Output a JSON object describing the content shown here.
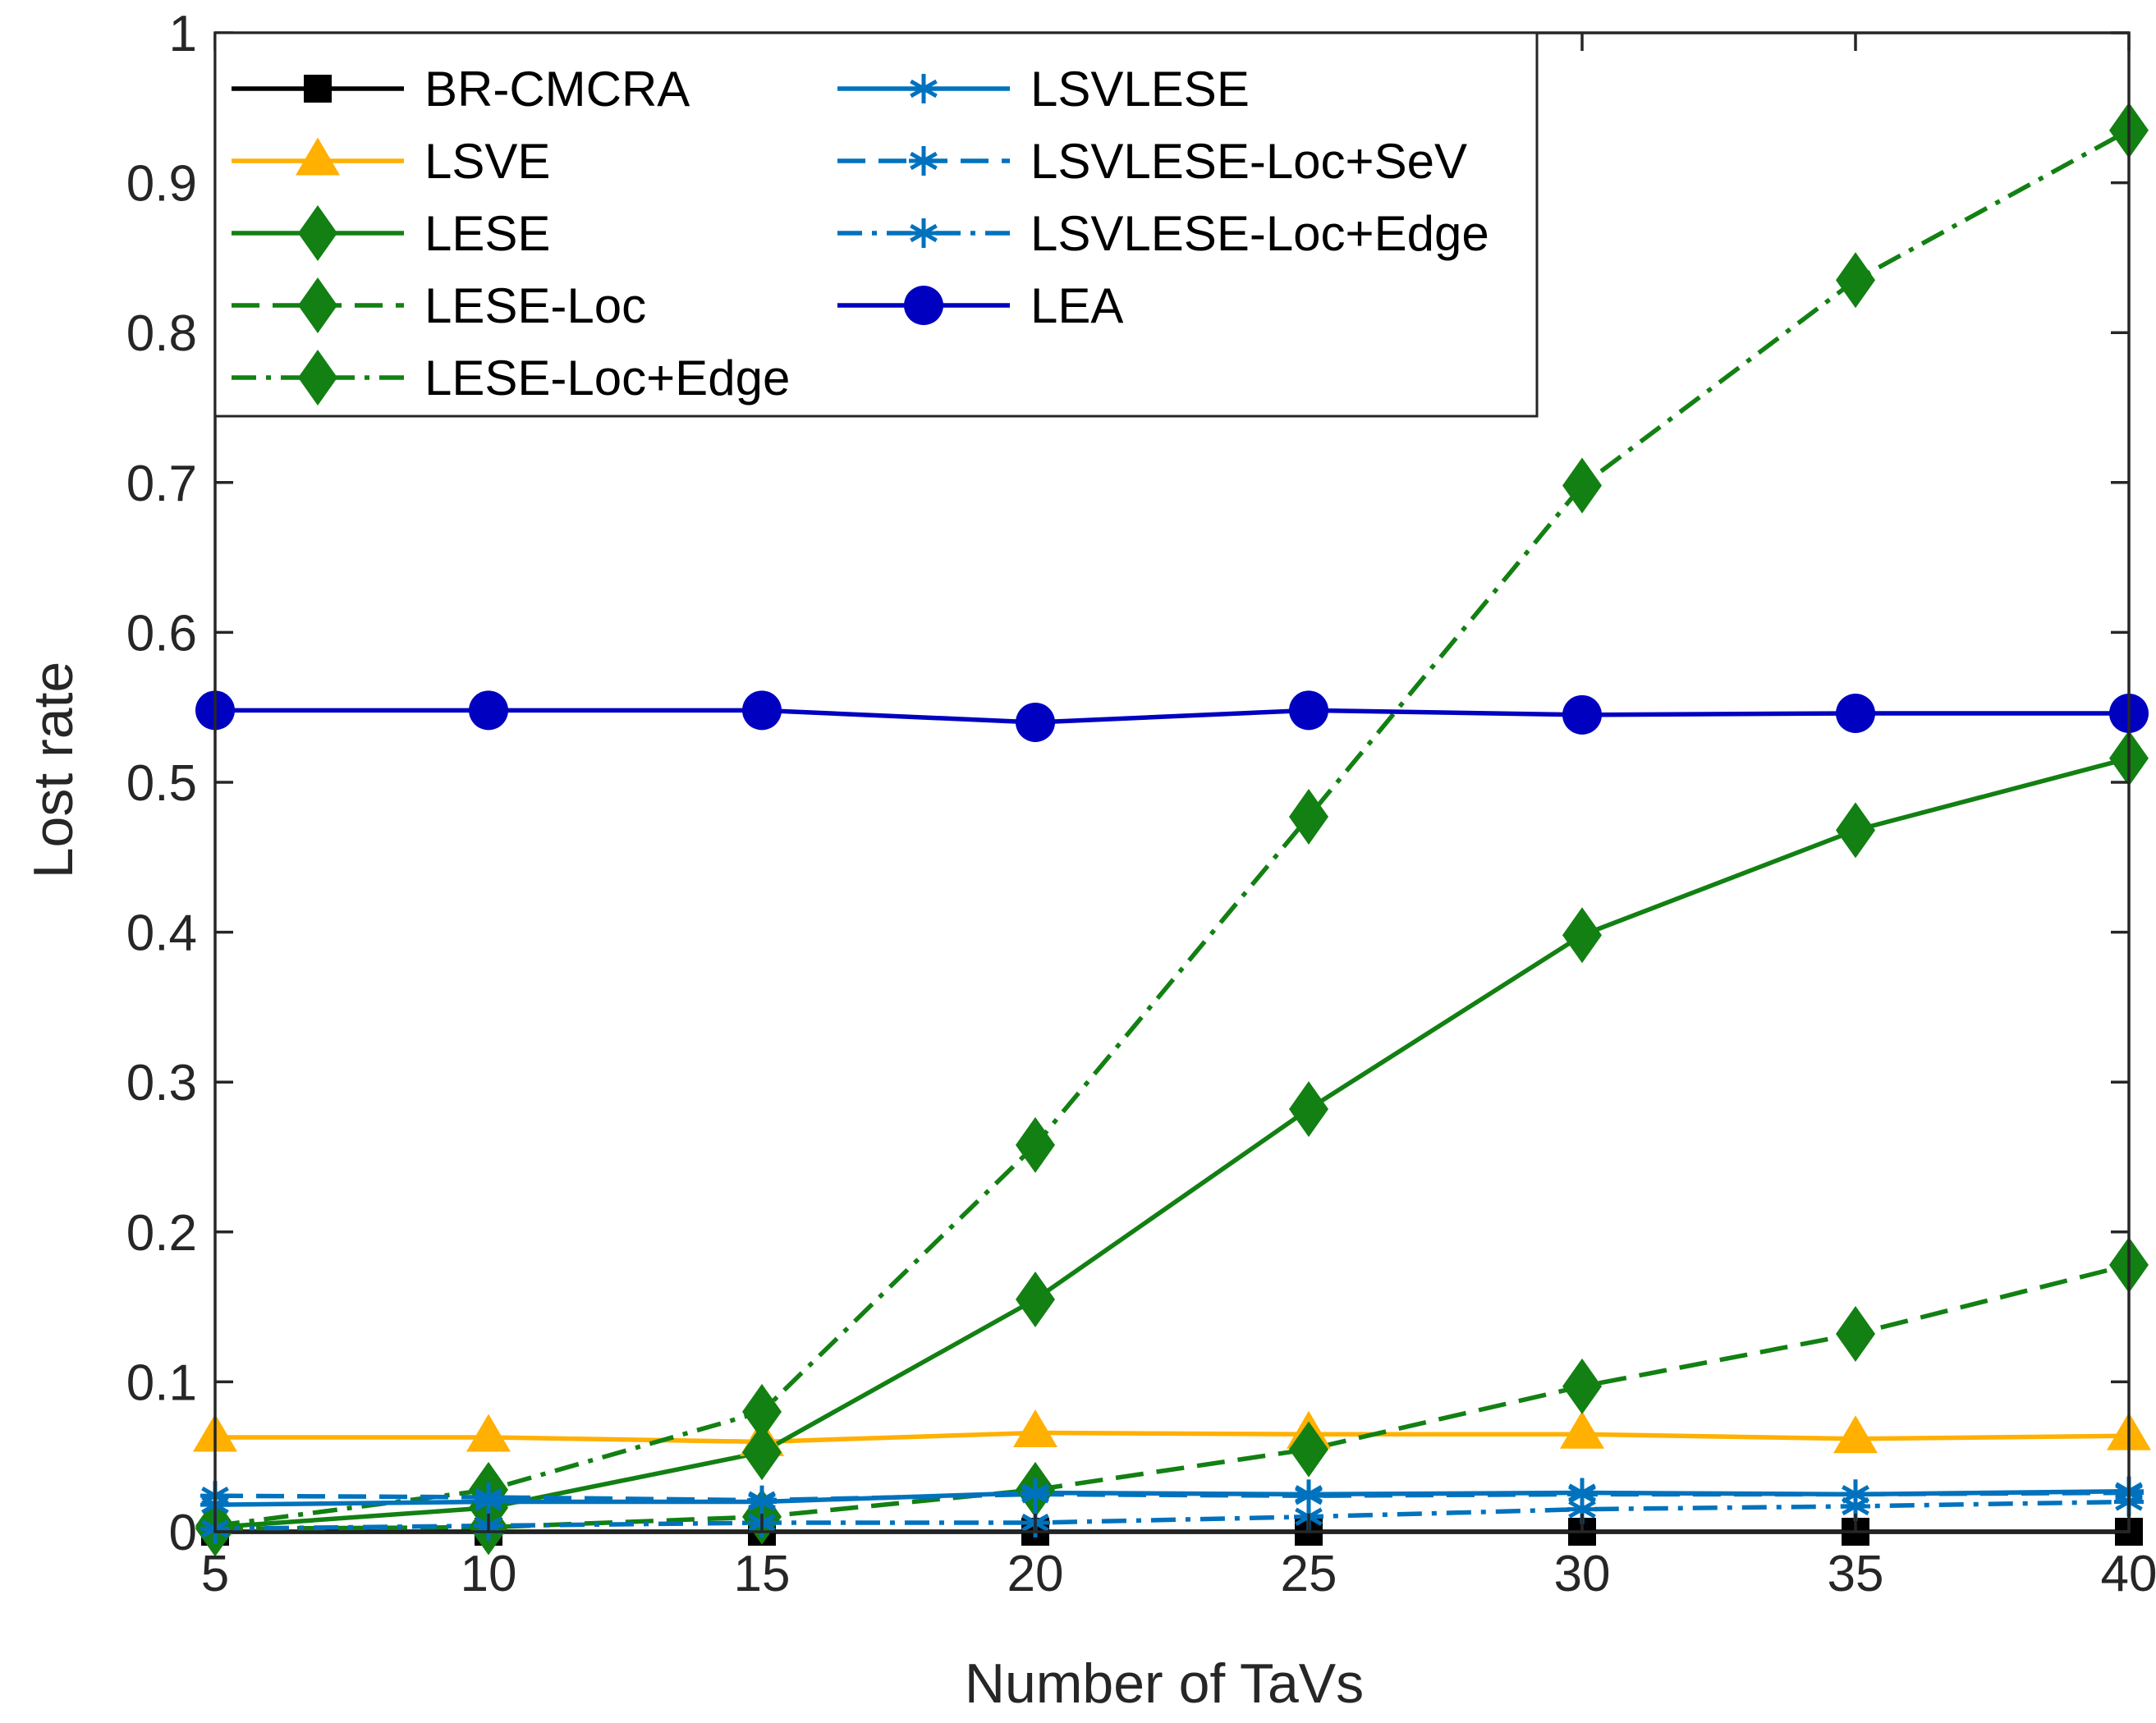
{
  "chart_data": {
    "type": "line",
    "title": "",
    "xlabel": "Number of TaVs",
    "ylabel": "Lost rate",
    "xlim": [
      5,
      40
    ],
    "ylim": [
      0,
      1
    ],
    "grid": false,
    "legend_position": "top-left",
    "x": [
      5,
      10,
      15,
      20,
      25,
      30,
      35,
      40
    ],
    "x_ticks": [
      "5",
      "10",
      "15",
      "20",
      "25",
      "30",
      "35",
      "40"
    ],
    "y_ticks": [
      "0",
      "0.1",
      "0.2",
      "0.3",
      "0.4",
      "0.5",
      "0.6",
      "0.7",
      "0.8",
      "0.9",
      "1"
    ],
    "series": [
      {
        "name": "BR-CMCRA",
        "color": "#000000",
        "line": "solid",
        "marker": "square",
        "values": [
          0,
          0,
          0,
          0,
          0,
          0,
          0,
          0
        ]
      },
      {
        "name": "LSVE",
        "color": "#FFB000",
        "line": "solid",
        "marker": "triangle",
        "values": [
          0.063,
          0.063,
          0.06,
          0.066,
          0.065,
          0.065,
          0.062,
          0.064
        ]
      },
      {
        "name": "LESE",
        "color": "#128012",
        "line": "solid",
        "marker": "diamond",
        "values": [
          0.003,
          0.016,
          0.053,
          0.155,
          0.282,
          0.398,
          0.468,
          0.516
        ]
      },
      {
        "name": "LESE-Loc",
        "color": "#128012",
        "line": "dashed",
        "marker": "diamond",
        "values": [
          0.002,
          0.003,
          0.01,
          0.028,
          0.055,
          0.097,
          0.132,
          0.178
        ]
      },
      {
        "name": "LESE-Loc+Edge",
        "color": "#128012",
        "line": "dashdot",
        "marker": "diamond",
        "values": [
          0.004,
          0.028,
          0.08,
          0.258,
          0.477,
          0.698,
          0.835,
          0.935
        ]
      },
      {
        "name": "LSVLESE",
        "color": "#0072BD",
        "line": "solid",
        "marker": "asterisk",
        "values": [
          0.018,
          0.02,
          0.02,
          0.026,
          0.025,
          0.026,
          0.025,
          0.027
        ]
      },
      {
        "name": "LSVLESE-Loc+SeV",
        "color": "#0072BD",
        "line": "dashed",
        "marker": "asterisk",
        "values": [
          0.024,
          0.023,
          0.021,
          0.025,
          0.024,
          0.025,
          0.025,
          0.026
        ]
      },
      {
        "name": "LSVLESE-Loc+Edge",
        "color": "#0072BD",
        "line": "dashdot",
        "marker": "asterisk",
        "values": [
          0.002,
          0.004,
          0.006,
          0.006,
          0.01,
          0.015,
          0.017,
          0.02
        ]
      },
      {
        "name": "LEA",
        "color": "#0000C0",
        "line": "solid",
        "marker": "circle",
        "values": [
          0.548,
          0.548,
          0.548,
          0.54,
          0.548,
          0.545,
          0.546,
          0.546
        ]
      }
    ]
  }
}
